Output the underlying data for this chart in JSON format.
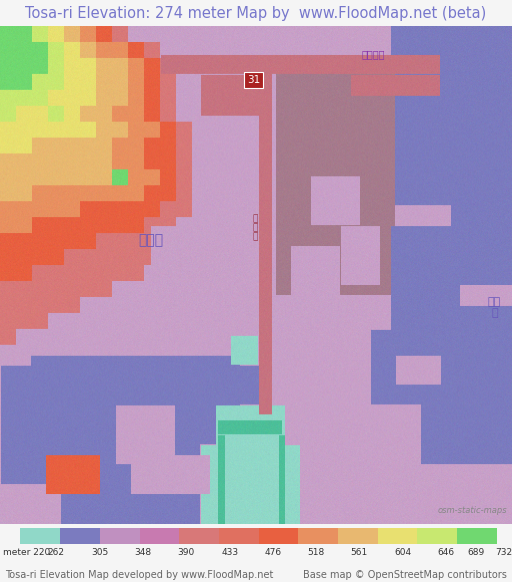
{
  "title": "Tosa-ri Elevation: 274 meter Map by  www.FloodMap.net (beta)",
  "title_color": "#7777cc",
  "title_fontsize": 10.5,
  "colorbar_labels": [
    "meter 220",
    "262",
    "305",
    "348",
    "390",
    "433",
    "476",
    "518",
    "561",
    "604",
    "646",
    "689",
    "732"
  ],
  "colorbar_colors": [
    "#90d8c8",
    "#7b7bbf",
    "#c090c0",
    "#c87ab0",
    "#d87878",
    "#e07060",
    "#e86040",
    "#e89060",
    "#e8b870",
    "#e8e070",
    "#c8e870",
    "#70d870"
  ],
  "footer_left": "Tosa-ri Elevation Map developed by www.FloodMap.net",
  "footer_right": "Base map © OpenStreetMap contributors",
  "footer_color": "#666666",
  "footer_fontsize": 7,
  "bg_color": "#f5f5f5",
  "map_bg": "#c8a0c8",
  "figwidth": 5.12,
  "figheight": 5.82,
  "elev_colors": {
    "teal": [
      0.565,
      0.847,
      0.784
    ],
    "blue": [
      0.482,
      0.482,
      0.749
    ],
    "purple_lt": [
      0.784,
      0.627,
      0.784
    ],
    "purple_med": [
      0.722,
      0.565,
      0.722
    ],
    "pink": [
      0.8,
      0.627,
      0.8
    ],
    "red_brn": [
      0.72,
      0.49,
      0.54
    ],
    "red_dk": [
      0.847,
      0.471,
      0.471
    ],
    "orange_red": [
      0.91,
      0.376,
      0.251
    ],
    "orange": [
      0.91,
      0.565,
      0.376
    ],
    "yellow_org": [
      0.91,
      0.722,
      0.439
    ],
    "yellow": [
      0.91,
      0.878,
      0.439
    ],
    "yel_grn": [
      0.784,
      0.91,
      0.439
    ],
    "green": [
      0.439,
      0.847,
      0.439
    ],
    "lt_purple": [
      0.8,
      0.7,
      0.83
    ]
  }
}
